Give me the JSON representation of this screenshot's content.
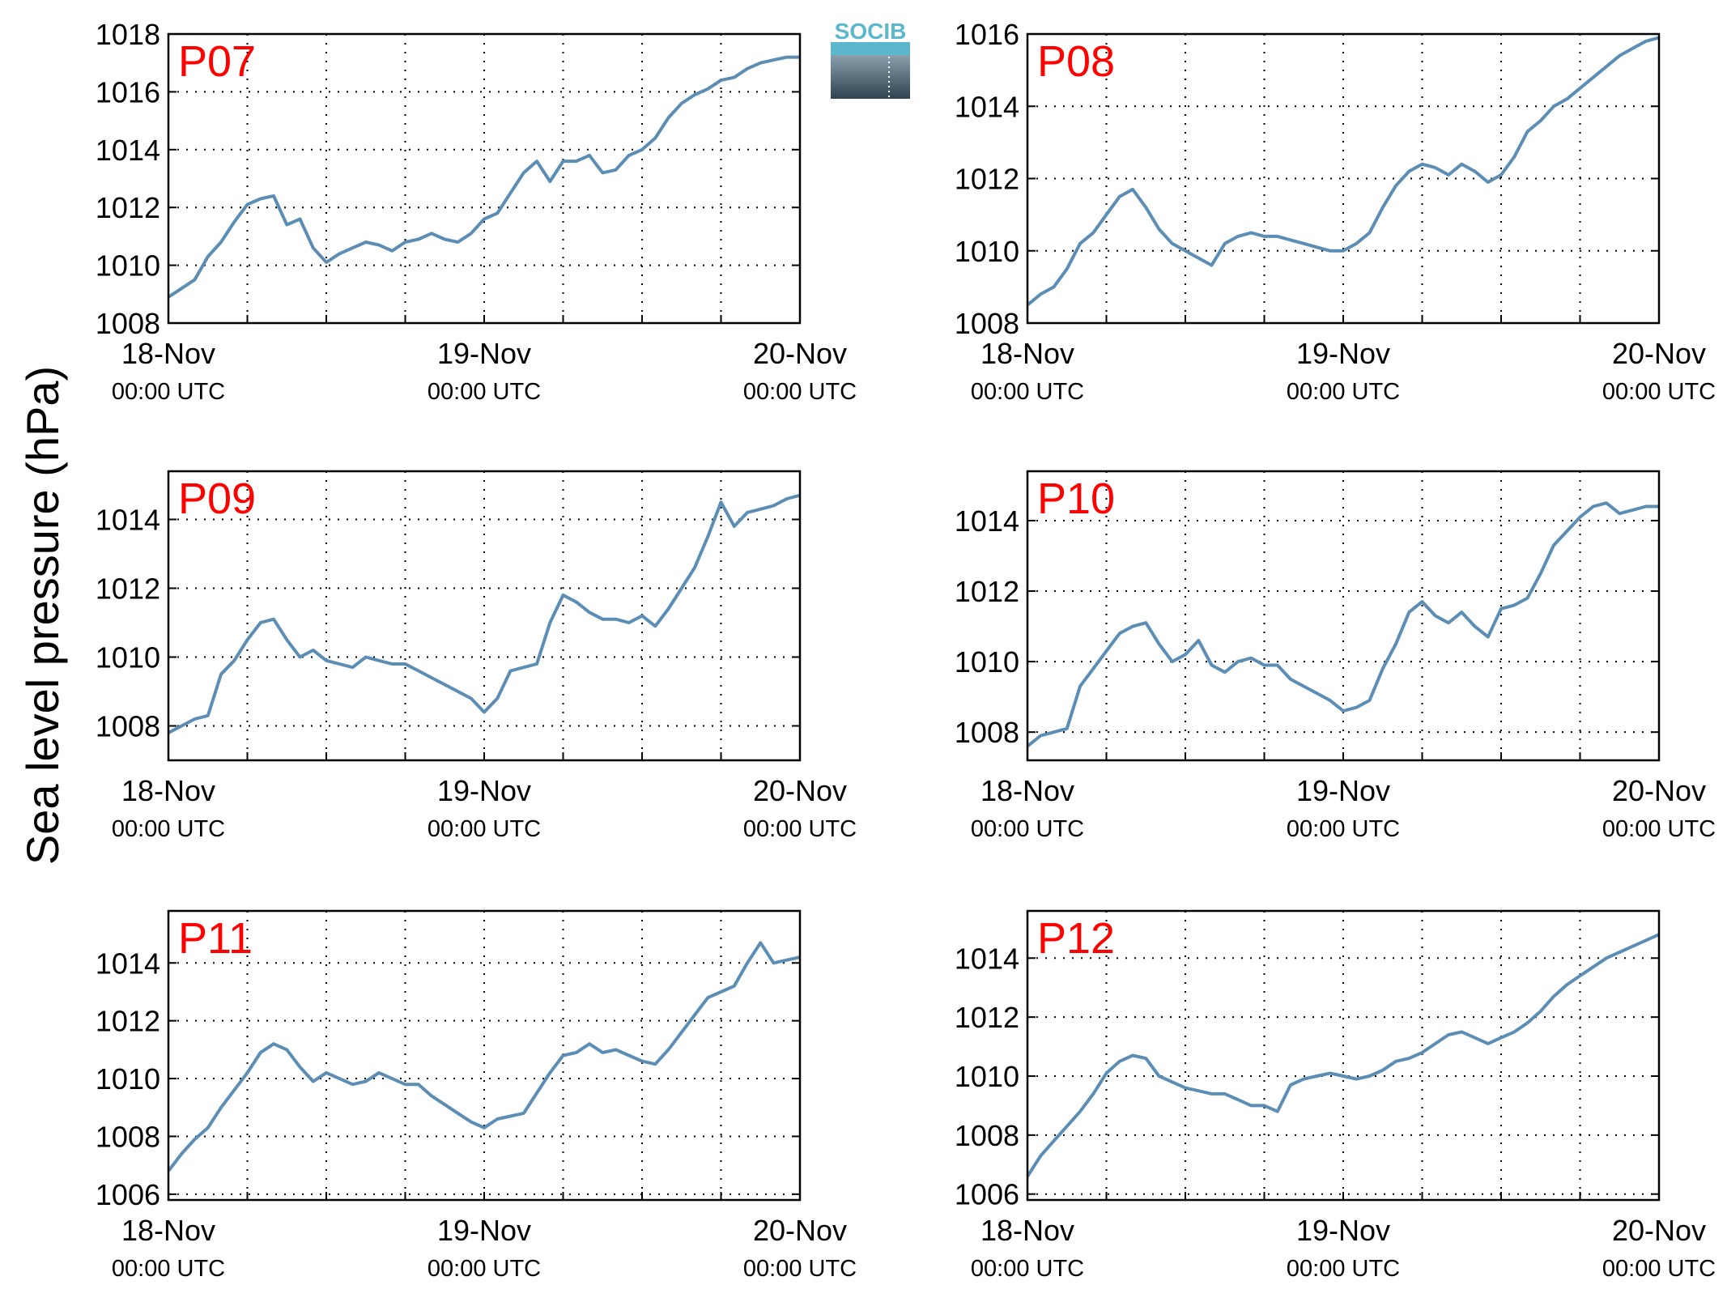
{
  "figure": {
    "ylabel": "Sea level pressure (hPa)",
    "logo_text": "SOCIB",
    "line_color": "#5b8db5",
    "label_color": "#ff0000",
    "grid": "dotted"
  },
  "chart_data": [
    {
      "type": "line",
      "station": "P07",
      "x_ticks": [
        {
          "date": "18-Nov",
          "time": "00:00 UTC"
        },
        {
          "date": "19-Nov",
          "time": "00:00 UTC"
        },
        {
          "date": "20-Nov",
          "time": "00:00 UTC"
        }
      ],
      "xlim_hours": [
        0,
        48
      ],
      "ylim": [
        1008,
        1018
      ],
      "yticks": [
        1008,
        1010,
        1012,
        1014,
        1016,
        1018
      ],
      "series": [
        {
          "x_hours": [
            0,
            1,
            2,
            3,
            4,
            5,
            6,
            7,
            8,
            9,
            10,
            11,
            12,
            13,
            14,
            15,
            16,
            17,
            18,
            19,
            20,
            21,
            22,
            23,
            24,
            25,
            26,
            27,
            28,
            29,
            30,
            31,
            32,
            33,
            34,
            35,
            36,
            37,
            38,
            39,
            40,
            41,
            42,
            43,
            44,
            45,
            46,
            47,
            48
          ],
          "values": [
            1008.9,
            1009.2,
            1009.5,
            1010.3,
            1010.8,
            1011.5,
            1012.1,
            1012.3,
            1012.4,
            1011.4,
            1011.6,
            1010.6,
            1010.1,
            1010.4,
            1010.6,
            1010.8,
            1010.7,
            1010.5,
            1010.8,
            1010.9,
            1011.1,
            1010.9,
            1010.8,
            1011.1,
            1011.6,
            1011.8,
            1012.5,
            1013.2,
            1013.6,
            1012.9,
            1013.6,
            1013.6,
            1013.8,
            1013.2,
            1013.3,
            1013.8,
            1014.0,
            1014.4,
            1015.1,
            1015.6,
            1015.9,
            1016.1,
            1016.4,
            1016.5,
            1016.8,
            1017.0,
            1017.1,
            1017.2,
            1017.2
          ]
        }
      ]
    },
    {
      "type": "line",
      "station": "P08",
      "x_ticks": [
        {
          "date": "18-Nov",
          "time": "00:00 UTC"
        },
        {
          "date": "19-Nov",
          "time": "00:00 UTC"
        },
        {
          "date": "20-Nov",
          "time": "00:00 UTC"
        }
      ],
      "xlim_hours": [
        0,
        48
      ],
      "ylim": [
        1008,
        1016
      ],
      "yticks": [
        1008,
        1010,
        1012,
        1014,
        1016
      ],
      "series": [
        {
          "x_hours": [
            0,
            1,
            2,
            3,
            4,
            5,
            6,
            7,
            8,
            9,
            10,
            11,
            12,
            13,
            14,
            15,
            16,
            17,
            18,
            19,
            20,
            21,
            22,
            23,
            24,
            25,
            26,
            27,
            28,
            29,
            30,
            31,
            32,
            33,
            34,
            35,
            36,
            37,
            38,
            39,
            40,
            41,
            42,
            43,
            44,
            45,
            46,
            47,
            48
          ],
          "values": [
            1008.5,
            1008.8,
            1009.0,
            1009.5,
            1010.2,
            1010.5,
            1011.0,
            1011.5,
            1011.7,
            1011.2,
            1010.6,
            1010.2,
            1010.0,
            1009.8,
            1009.6,
            1010.2,
            1010.4,
            1010.5,
            1010.4,
            1010.4,
            1010.3,
            1010.2,
            1010.1,
            1010.0,
            1010.0,
            1010.2,
            1010.5,
            1011.2,
            1011.8,
            1012.2,
            1012.4,
            1012.3,
            1012.1,
            1012.4,
            1012.2,
            1011.9,
            1012.1,
            1012.6,
            1013.3,
            1013.6,
            1014.0,
            1014.2,
            1014.5,
            1014.8,
            1015.1,
            1015.4,
            1015.6,
            1015.8,
            1015.9
          ]
        }
      ]
    },
    {
      "type": "line",
      "station": "P09",
      "x_ticks": [
        {
          "date": "18-Nov",
          "time": "00:00 UTC"
        },
        {
          "date": "19-Nov",
          "time": "00:00 UTC"
        },
        {
          "date": "20-Nov",
          "time": "00:00 UTC"
        }
      ],
      "xlim_hours": [
        0,
        48
      ],
      "ylim": [
        1007,
        1015.4
      ],
      "yticks": [
        1008,
        1010,
        1012,
        1014
      ],
      "series": [
        {
          "x_hours": [
            0,
            1,
            2,
            3,
            4,
            5,
            6,
            7,
            8,
            9,
            10,
            11,
            12,
            13,
            14,
            15,
            16,
            17,
            18,
            19,
            20,
            21,
            22,
            23,
            24,
            25,
            26,
            27,
            28,
            29,
            30,
            31,
            32,
            33,
            34,
            35,
            36,
            37,
            38,
            39,
            40,
            41,
            42,
            43,
            44,
            45,
            46,
            47,
            48
          ],
          "values": [
            1007.8,
            1008.0,
            1008.2,
            1008.3,
            1009.5,
            1009.9,
            1010.5,
            1011.0,
            1011.1,
            1010.5,
            1010.0,
            1010.2,
            1009.9,
            1009.8,
            1009.7,
            1010.0,
            1009.9,
            1009.8,
            1009.8,
            1009.6,
            1009.4,
            1009.2,
            1009.0,
            1008.8,
            1008.4,
            1008.8,
            1009.6,
            1009.7,
            1009.8,
            1011.0,
            1011.8,
            1011.6,
            1011.3,
            1011.1,
            1011.1,
            1011.0,
            1011.2,
            1010.9,
            1011.4,
            1012.0,
            1012.6,
            1013.5,
            1014.5,
            1013.8,
            1014.2,
            1014.3,
            1014.4,
            1014.6,
            1014.7
          ]
        }
      ]
    },
    {
      "type": "line",
      "station": "P10",
      "x_ticks": [
        {
          "date": "18-Nov",
          "time": "00:00 UTC"
        },
        {
          "date": "19-Nov",
          "time": "00:00 UTC"
        },
        {
          "date": "20-Nov",
          "time": "00:00 UTC"
        }
      ],
      "xlim_hours": [
        0,
        48
      ],
      "ylim": [
        1007.2,
        1015.4
      ],
      "yticks": [
        1008,
        1010,
        1012,
        1014
      ],
      "series": [
        {
          "x_hours": [
            0,
            1,
            2,
            3,
            4,
            5,
            6,
            7,
            8,
            9,
            10,
            11,
            12,
            13,
            14,
            15,
            16,
            17,
            18,
            19,
            20,
            21,
            22,
            23,
            24,
            25,
            26,
            27,
            28,
            29,
            30,
            31,
            32,
            33,
            34,
            35,
            36,
            37,
            38,
            39,
            40,
            41,
            42,
            43,
            44,
            45,
            46,
            47,
            48
          ],
          "values": [
            1007.6,
            1007.9,
            1008.0,
            1008.1,
            1009.3,
            1009.8,
            1010.3,
            1010.8,
            1011.0,
            1011.1,
            1010.5,
            1010.0,
            1010.2,
            1010.6,
            1009.9,
            1009.7,
            1010.0,
            1010.1,
            1009.9,
            1009.9,
            1009.5,
            1009.3,
            1009.1,
            1008.9,
            1008.6,
            1008.7,
            1008.9,
            1009.8,
            1010.5,
            1011.4,
            1011.7,
            1011.3,
            1011.1,
            1011.4,
            1011.0,
            1010.7,
            1011.5,
            1011.6,
            1011.8,
            1012.5,
            1013.3,
            1013.7,
            1014.1,
            1014.4,
            1014.5,
            1014.2,
            1014.3,
            1014.4,
            1014.4
          ]
        }
      ]
    },
    {
      "type": "line",
      "station": "P11",
      "x_ticks": [
        {
          "date": "18-Nov",
          "time": "00:00 UTC"
        },
        {
          "date": "19-Nov",
          "time": "00:00 UTC"
        },
        {
          "date": "20-Nov",
          "time": "00:00 UTC"
        }
      ],
      "xlim_hours": [
        0,
        48
      ],
      "ylim": [
        1005.8,
        1015.8
      ],
      "yticks": [
        1006,
        1008,
        1010,
        1012,
        1014
      ],
      "series": [
        {
          "x_hours": [
            0,
            1,
            2,
            3,
            4,
            5,
            6,
            7,
            8,
            9,
            10,
            11,
            12,
            13,
            14,
            15,
            16,
            17,
            18,
            19,
            20,
            21,
            22,
            23,
            24,
            25,
            26,
            27,
            28,
            29,
            30,
            31,
            32,
            33,
            34,
            35,
            36,
            37,
            38,
            39,
            40,
            41,
            42,
            43,
            44,
            45,
            46,
            47,
            48
          ],
          "values": [
            1006.8,
            1007.4,
            1007.9,
            1008.3,
            1009.0,
            1009.6,
            1010.2,
            1010.9,
            1011.2,
            1011.0,
            1010.4,
            1009.9,
            1010.2,
            1010.0,
            1009.8,
            1009.9,
            1010.2,
            1010.0,
            1009.8,
            1009.8,
            1009.4,
            1009.1,
            1008.8,
            1008.5,
            1008.3,
            1008.6,
            1008.7,
            1008.8,
            1009.5,
            1010.2,
            1010.8,
            1010.9,
            1011.2,
            1010.9,
            1011.0,
            1010.8,
            1010.6,
            1010.5,
            1011.0,
            1011.6,
            1012.2,
            1012.8,
            1013.0,
            1013.2,
            1014.0,
            1014.7,
            1014.0,
            1014.1,
            1014.2
          ]
        }
      ]
    },
    {
      "type": "line",
      "station": "P12",
      "x_ticks": [
        {
          "date": "18-Nov",
          "time": "00:00 UTC"
        },
        {
          "date": "19-Nov",
          "time": "00:00 UTC"
        },
        {
          "date": "20-Nov",
          "time": "00:00 UTC"
        }
      ],
      "xlim_hours": [
        0,
        48
      ],
      "ylim": [
        1005.8,
        1015.6
      ],
      "yticks": [
        1006,
        1008,
        1010,
        1012,
        1014
      ],
      "series": [
        {
          "x_hours": [
            0,
            1,
            2,
            3,
            4,
            5,
            6,
            7,
            8,
            9,
            10,
            11,
            12,
            13,
            14,
            15,
            16,
            17,
            18,
            19,
            20,
            21,
            22,
            23,
            24,
            25,
            26,
            27,
            28,
            29,
            30,
            31,
            32,
            33,
            34,
            35,
            36,
            37,
            38,
            39,
            40,
            41,
            42,
            43,
            44,
            45,
            46,
            47,
            48
          ],
          "values": [
            1006.6,
            1007.3,
            1007.8,
            1008.3,
            1008.8,
            1009.4,
            1010.1,
            1010.5,
            1010.7,
            1010.6,
            1010.0,
            1009.8,
            1009.6,
            1009.5,
            1009.4,
            1009.4,
            1009.2,
            1009.0,
            1009.0,
            1008.8,
            1009.7,
            1009.9,
            1010.0,
            1010.1,
            1010.0,
            1009.9,
            1010.0,
            1010.2,
            1010.5,
            1010.6,
            1010.8,
            1011.1,
            1011.4,
            1011.5,
            1011.3,
            1011.1,
            1011.3,
            1011.5,
            1011.8,
            1012.2,
            1012.7,
            1013.1,
            1013.4,
            1013.7,
            1014.0,
            1014.2,
            1014.4,
            1014.6,
            1014.8
          ]
        }
      ]
    }
  ]
}
